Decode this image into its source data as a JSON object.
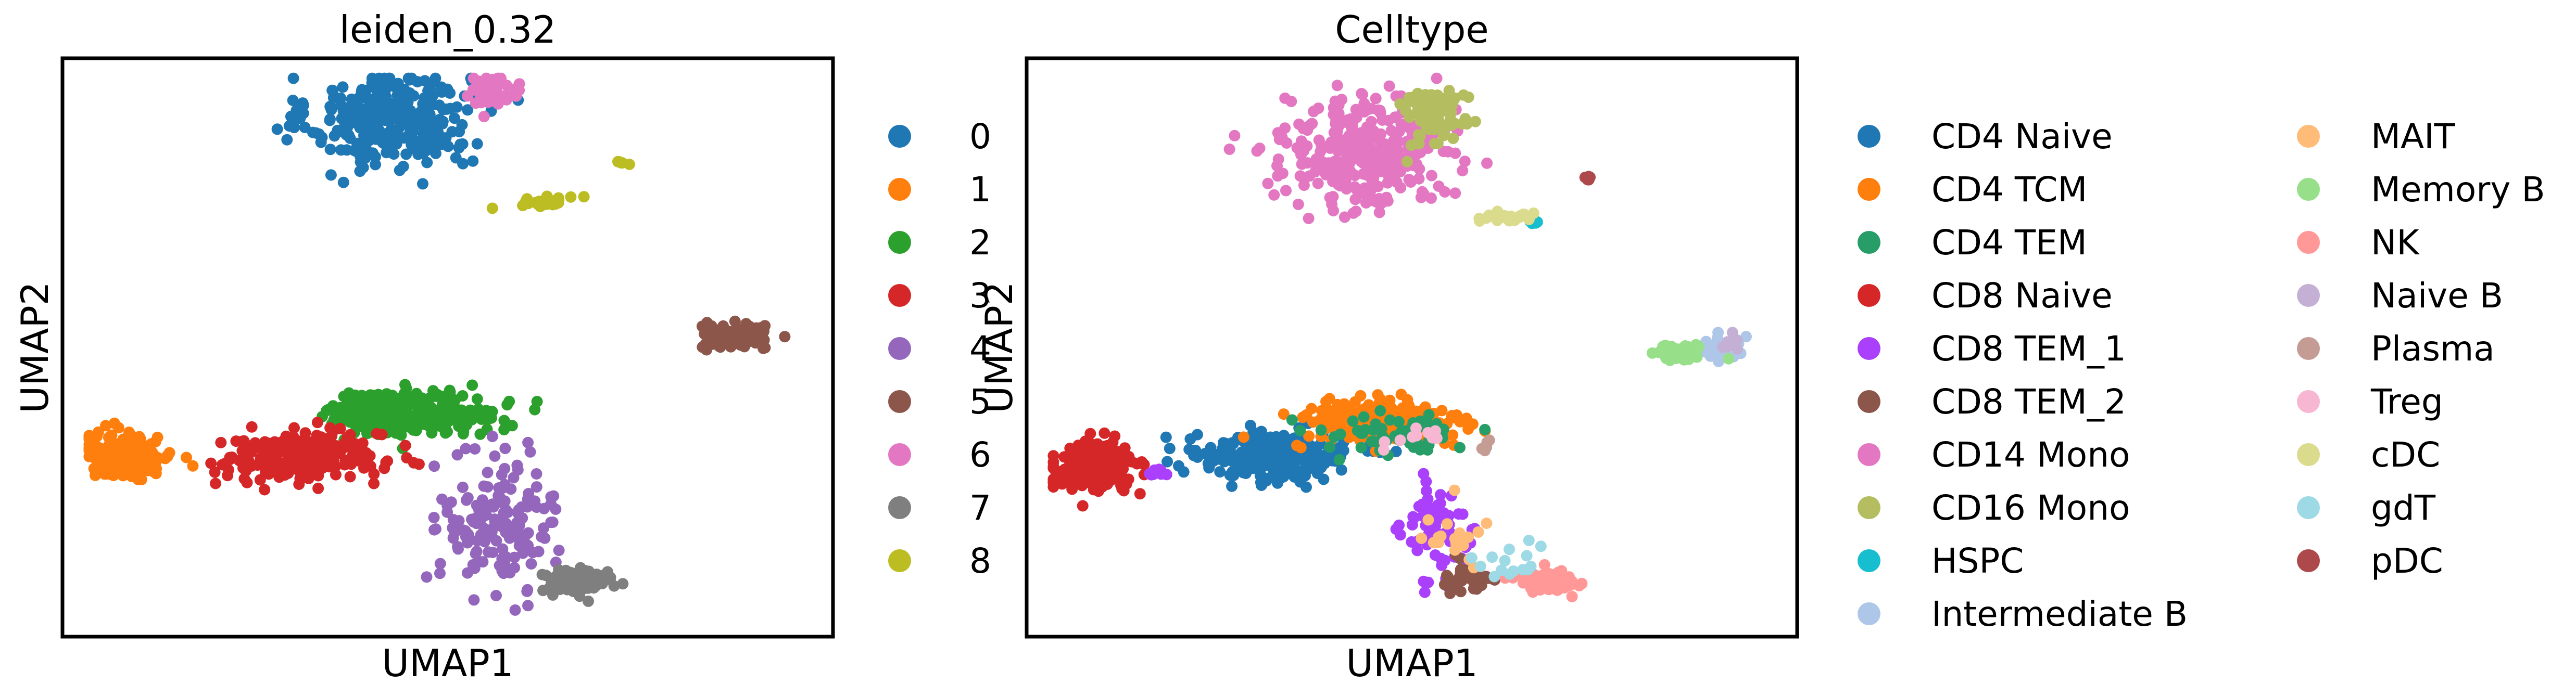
{
  "chart_data": [
    {
      "type": "scatter",
      "title": "leiden_0.32",
      "xlabel": "UMAP1",
      "ylabel": "UMAP2",
      "legend": "right",
      "grid": false,
      "categories": [
        "0",
        "1",
        "2",
        "3",
        "4",
        "5",
        "6",
        "7",
        "8"
      ],
      "colors": [
        "#1f77b4",
        "#ff7f0e",
        "#2ca02c",
        "#d62728",
        "#9467bd",
        "#8c564b",
        "#e377c2",
        "#7f7f7f",
        "#bcbd22"
      ],
      "clusters": [
        {
          "label": "0",
          "x": 0.42,
          "y": 0.92,
          "sx": 0.055,
          "sy": 0.045,
          "n": 330
        },
        {
          "label": "1",
          "x": 0.06,
          "y": 0.3,
          "sx": 0.03,
          "sy": 0.02,
          "n": 220
        },
        {
          "label": "2",
          "x": 0.45,
          "y": 0.38,
          "sx": 0.06,
          "sy": 0.02,
          "n": 260
        },
        {
          "label": "3",
          "x": 0.3,
          "y": 0.3,
          "sx": 0.055,
          "sy": 0.022,
          "n": 260
        },
        {
          "label": "4",
          "x": 0.57,
          "y": 0.18,
          "sx": 0.04,
          "sy": 0.06,
          "n": 160
        },
        {
          "label": "5",
          "x": 0.9,
          "y": 0.52,
          "sx": 0.025,
          "sy": 0.012,
          "n": 90
        },
        {
          "label": "6",
          "x": 0.56,
          "y": 0.97,
          "sx": 0.02,
          "sy": 0.015,
          "n": 50
        },
        {
          "label": "7",
          "x": 0.68,
          "y": 0.07,
          "sx": 0.025,
          "sy": 0.012,
          "n": 80
        },
        {
          "label": "8",
          "x": 0.64,
          "y": 0.77,
          "sx": 0.02,
          "sy": 0.005,
          "n": 25
        },
        {
          "label": "8",
          "x": 0.74,
          "y": 0.84,
          "sx": 0.004,
          "sy": 0.004,
          "n": 6
        }
      ]
    },
    {
      "type": "scatter",
      "title": "Celltype",
      "xlabel": "UMAP1",
      "ylabel": "UMAP2",
      "legend": "right",
      "grid": false,
      "categories": [
        "CD4 Naive",
        "CD4 TCM",
        "CD4 TEM",
        "CD8 Naive",
        "CD8 TEM_1",
        "CD8 TEM_2",
        "CD14 Mono",
        "CD16 Mono",
        "HSPC",
        "Intermediate B",
        "MAIT",
        "Memory B",
        "NK",
        "Naive B",
        "Plasma",
        "Treg",
        "cDC",
        "gdT",
        "pDC"
      ],
      "colors": [
        "#1f77b4",
        "#ff7f0e",
        "#279e68",
        "#d62728",
        "#aa40fc",
        "#8c564b",
        "#e377c2",
        "#b5bd61",
        "#17becf",
        "#aec7e8",
        "#ffbb78",
        "#98df8a",
        "#ff9896",
        "#c5b0d5",
        "#c49c94",
        "#f7b6d2",
        "#dbdb8d",
        "#9edae5",
        "#ad494a"
      ],
      "clusters": [
        {
          "label": "CD4 Naive",
          "x": 0.31,
          "y": 0.3,
          "sx": 0.055,
          "sy": 0.022,
          "n": 260
        },
        {
          "label": "CD4 TCM",
          "x": 0.46,
          "y": 0.36,
          "sx": 0.06,
          "sy": 0.025,
          "n": 200
        },
        {
          "label": "CD4 TEM",
          "x": 0.47,
          "y": 0.34,
          "sx": 0.05,
          "sy": 0.02,
          "n": 60
        },
        {
          "label": "CD8 Naive",
          "x": 0.06,
          "y": 0.28,
          "sx": 0.03,
          "sy": 0.022,
          "n": 220
        },
        {
          "label": "CD8 TEM_1",
          "x": 0.54,
          "y": 0.16,
          "sx": 0.025,
          "sy": 0.05,
          "n": 70
        },
        {
          "label": "CD8 TEM_1",
          "x": 0.15,
          "y": 0.27,
          "sx": 0.008,
          "sy": 0.004,
          "n": 10
        },
        {
          "label": "CD8 TEM_2",
          "x": 0.58,
          "y": 0.08,
          "sx": 0.015,
          "sy": 0.015,
          "n": 40
        },
        {
          "label": "CD14 Mono",
          "x": 0.43,
          "y": 0.86,
          "sx": 0.055,
          "sy": 0.05,
          "n": 330
        },
        {
          "label": "CD16 Mono",
          "x": 0.53,
          "y": 0.93,
          "sx": 0.022,
          "sy": 0.03,
          "n": 80
        },
        {
          "label": "HSPC",
          "x": 0.67,
          "y": 0.73,
          "sx": 0.004,
          "sy": 0.004,
          "n": 6
        },
        {
          "label": "Intermediate B",
          "x": 0.92,
          "y": 0.5,
          "sx": 0.018,
          "sy": 0.01,
          "n": 45
        },
        {
          "label": "MAIT",
          "x": 0.56,
          "y": 0.16,
          "sx": 0.02,
          "sy": 0.03,
          "n": 20
        },
        {
          "label": "Memory B",
          "x": 0.87,
          "y": 0.49,
          "sx": 0.018,
          "sy": 0.008,
          "n": 45
        },
        {
          "label": "NK",
          "x": 0.69,
          "y": 0.07,
          "sx": 0.022,
          "sy": 0.012,
          "n": 60
        },
        {
          "label": "Naive B",
          "x": 0.94,
          "y": 0.51,
          "sx": 0.01,
          "sy": 0.01,
          "n": 10
        },
        {
          "label": "Plasma",
          "x": 0.6,
          "y": 0.32,
          "sx": 0.008,
          "sy": 0.01,
          "n": 5
        },
        {
          "label": "Treg",
          "x": 0.5,
          "y": 0.33,
          "sx": 0.02,
          "sy": 0.01,
          "n": 10
        },
        {
          "label": "cDC",
          "x": 0.63,
          "y": 0.74,
          "sx": 0.018,
          "sy": 0.005,
          "n": 20
        },
        {
          "label": "gdT",
          "x": 0.63,
          "y": 0.1,
          "sx": 0.025,
          "sy": 0.015,
          "n": 15
        },
        {
          "label": "pDC",
          "x": 0.74,
          "y": 0.81,
          "sx": 0.004,
          "sy": 0.004,
          "n": 6
        }
      ]
    }
  ]
}
